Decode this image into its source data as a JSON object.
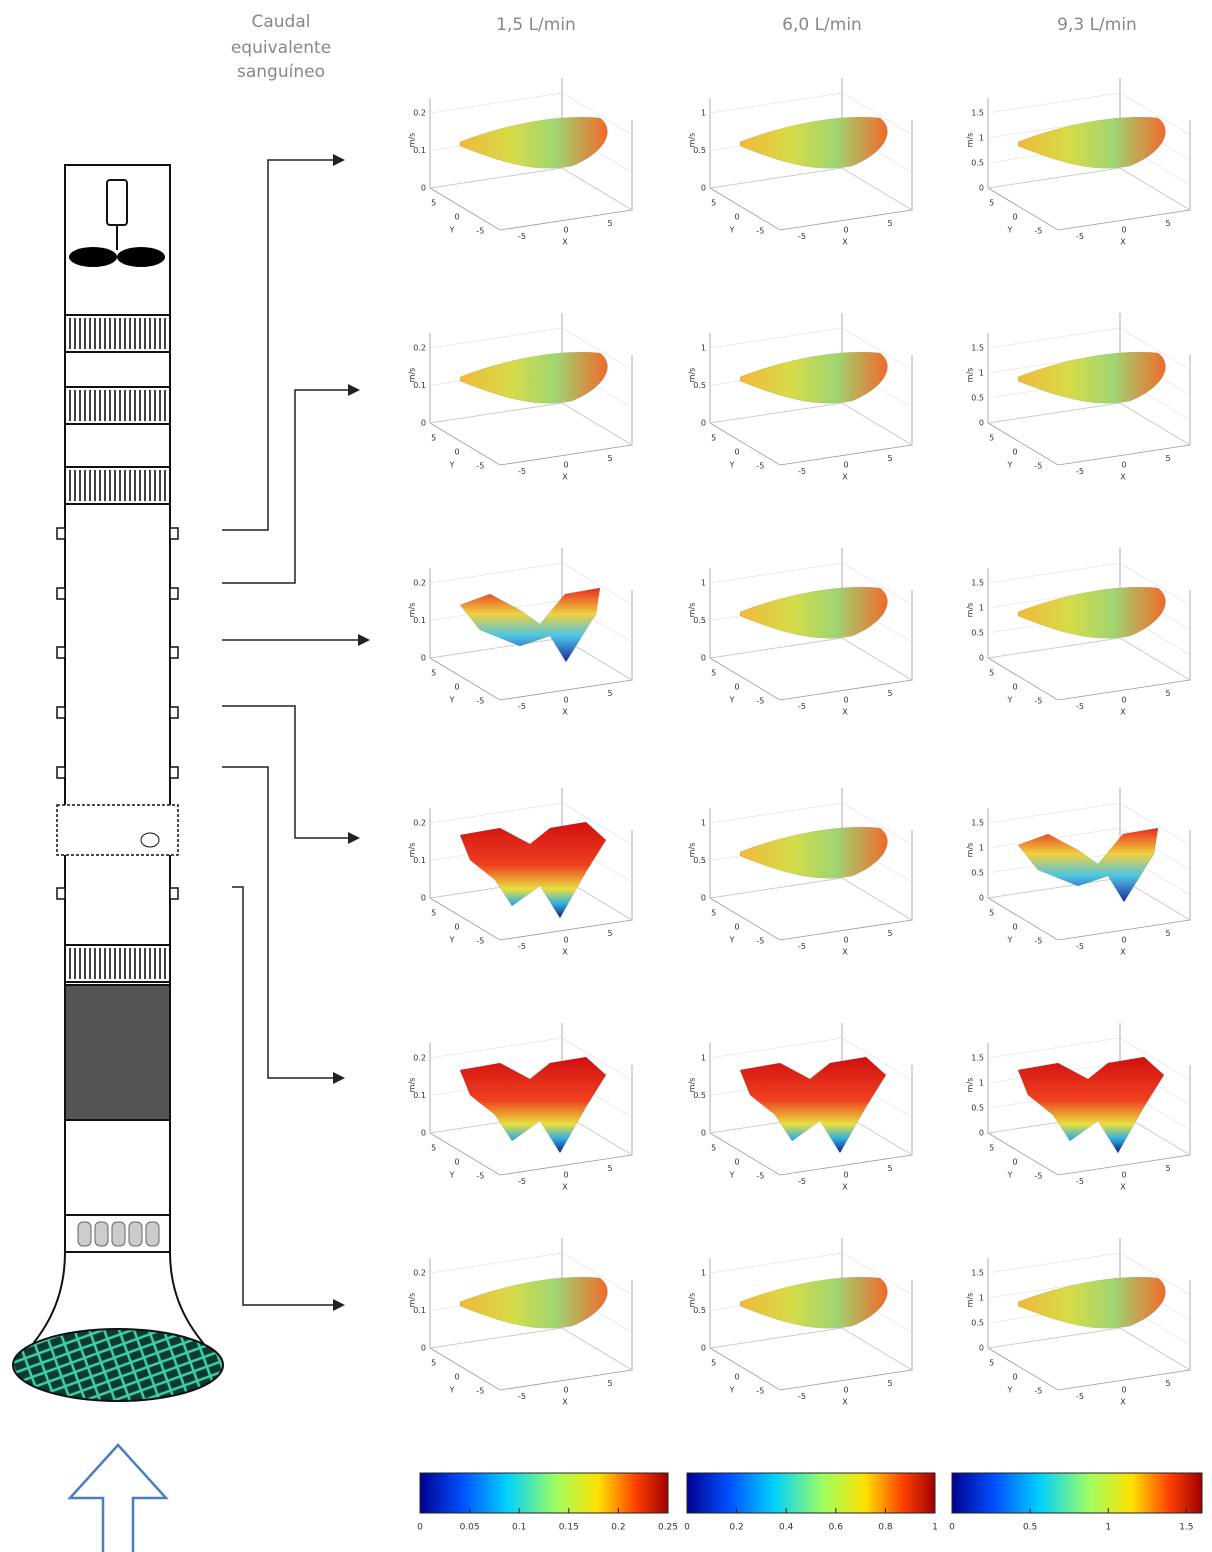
{
  "header": {
    "flow_label": [
      "Caudal",
      "equivalente",
      "sanguíneo"
    ]
  },
  "columns": [
    {
      "title": "1,5 L/min",
      "z_label": "m/s",
      "z_ticks": [
        0,
        0.1,
        0.2
      ],
      "y_label": "Y",
      "y_ticks": [
        5,
        0,
        -5
      ],
      "x_label": "X",
      "x_ticks": [
        -5,
        0,
        5
      ],
      "colorbar": {
        "range": [
          0,
          0.25
        ],
        "ticks": [
          0,
          0.05,
          0.1,
          0.15,
          0.2,
          0.25
        ]
      }
    },
    {
      "title": "6,0 L/min",
      "z_label": "m/s",
      "z_ticks": [
        0,
        0.5,
        1
      ],
      "y_label": "Y",
      "y_ticks": [
        5,
        0,
        -5
      ],
      "x_label": "X",
      "x_ticks": [
        -5,
        0,
        5
      ],
      "colorbar": {
        "range": [
          0,
          1
        ],
        "ticks": [
          0,
          0.2,
          0.4,
          0.6,
          0.8,
          1
        ]
      }
    },
    {
      "title": "9,3 L/min",
      "z_label": "m/s",
      "z_ticks": [
        0,
        0.5,
        1,
        1.5
      ],
      "y_label": "Y",
      "y_ticks": [
        5,
        0,
        -5
      ],
      "x_label": "X",
      "x_ticks": [
        -5,
        0,
        5
      ],
      "colorbar": {
        "range": [
          0,
          1.6
        ],
        "ticks": [
          0,
          0.5,
          1,
          1.5
        ]
      }
    }
  ]
}
